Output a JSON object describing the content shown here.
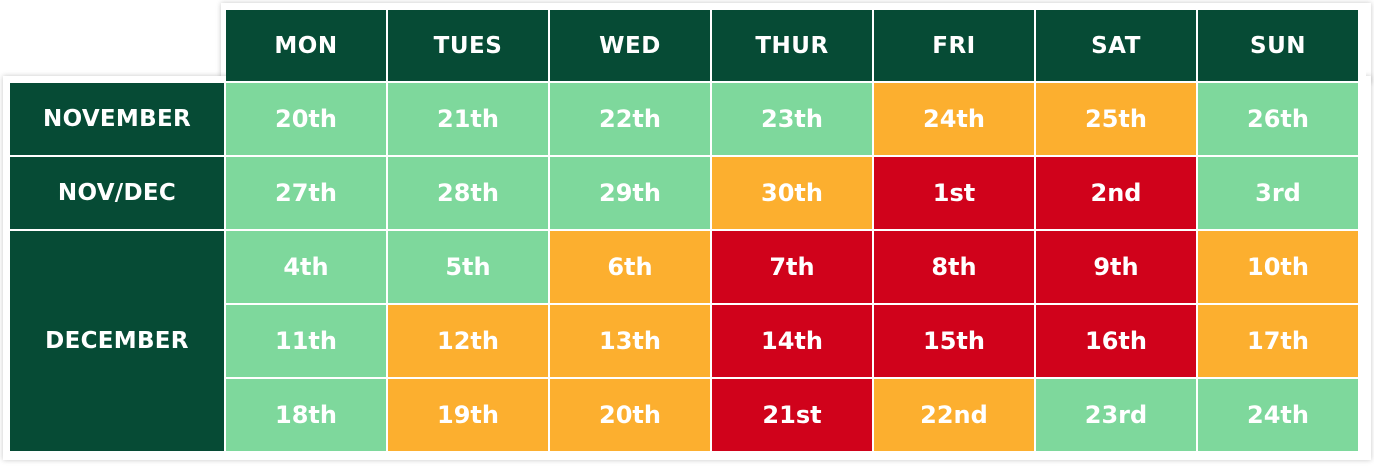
{
  "colors": {
    "header": "#064b35",
    "green": "#7ed89c",
    "orange": "#fcaf2f",
    "red": "#d0021b",
    "text": "#ffffff"
  },
  "days": [
    "MON",
    "TUES",
    "WED",
    "THUR",
    "FRI",
    "SAT",
    "SUN"
  ],
  "months": {
    "november": "NOVEMBER",
    "nov_dec": "NOV/DEC",
    "december": "DECEMBER"
  },
  "rows": [
    {
      "month": "NOVEMBER",
      "cells": [
        {
          "label": "20th",
          "level": "green"
        },
        {
          "label": "21th",
          "level": "green"
        },
        {
          "label": "22th",
          "level": "green"
        },
        {
          "label": "23th",
          "level": "green"
        },
        {
          "label": "24th",
          "level": "orange"
        },
        {
          "label": "25th",
          "level": "orange"
        },
        {
          "label": "26th",
          "level": "green"
        }
      ]
    },
    {
      "month": "NOV/DEC",
      "cells": [
        {
          "label": "27th",
          "level": "green"
        },
        {
          "label": "28th",
          "level": "green"
        },
        {
          "label": "29th",
          "level": "green"
        },
        {
          "label": "30th",
          "level": "orange"
        },
        {
          "label": "1st",
          "level": "red"
        },
        {
          "label": "2nd",
          "level": "red"
        },
        {
          "label": "3rd",
          "level": "green"
        }
      ]
    },
    {
      "month": "DECEMBER",
      "cells": [
        {
          "label": "4th",
          "level": "green"
        },
        {
          "label": "5th",
          "level": "green"
        },
        {
          "label": "6th",
          "level": "orange"
        },
        {
          "label": "7th",
          "level": "red"
        },
        {
          "label": "8th",
          "level": "red"
        },
        {
          "label": "9th",
          "level": "red"
        },
        {
          "label": "10th",
          "level": "orange"
        }
      ]
    },
    {
      "month": "DECEMBER",
      "cells": [
        {
          "label": "11th",
          "level": "green"
        },
        {
          "label": "12th",
          "level": "orange"
        },
        {
          "label": "13th",
          "level": "orange"
        },
        {
          "label": "14th",
          "level": "red"
        },
        {
          "label": "15th",
          "level": "red"
        },
        {
          "label": "16th",
          "level": "red"
        },
        {
          "label": "17th",
          "level": "orange"
        }
      ]
    },
    {
      "month": "DECEMBER",
      "cells": [
        {
          "label": "18th",
          "level": "green"
        },
        {
          "label": "19th",
          "level": "orange"
        },
        {
          "label": "20th",
          "level": "orange"
        },
        {
          "label": "21st",
          "level": "red"
        },
        {
          "label": "22nd",
          "level": "orange"
        },
        {
          "label": "23rd",
          "level": "green"
        },
        {
          "label": "24th",
          "level": "green"
        }
      ]
    }
  ]
}
